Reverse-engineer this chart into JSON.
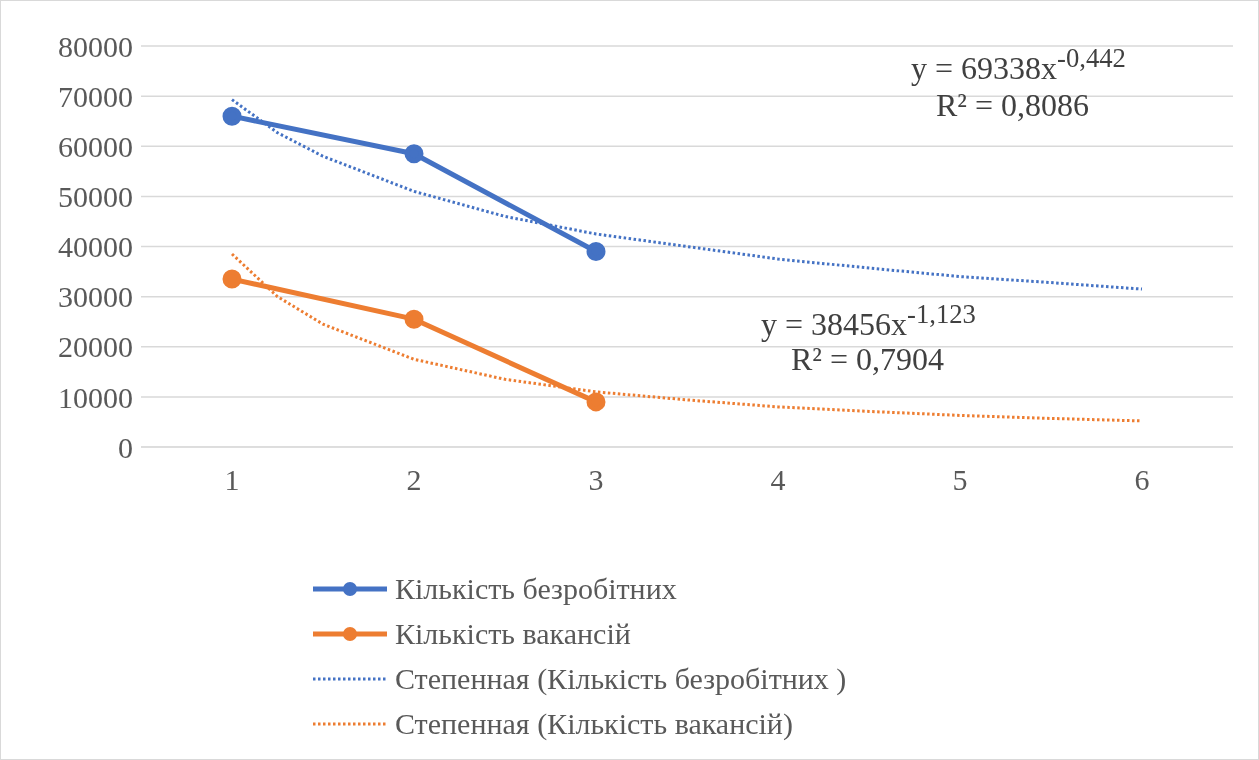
{
  "chart_data": {
    "type": "line",
    "xlim": [
      0.5,
      6.5
    ],
    "xticks": [
      1,
      2,
      3,
      4,
      5,
      6
    ],
    "ylim": [
      0,
      80000
    ],
    "yticks": [
      0,
      10000,
      20000,
      30000,
      40000,
      50000,
      60000,
      70000,
      80000
    ],
    "grid": "y",
    "legend": "bottom",
    "series": [
      {
        "name": "Кількість безробітних",
        "color": "#4472c4",
        "x": [
          1,
          2,
          3
        ],
        "values": [
          66000,
          58500,
          39000
        ],
        "marker": "circle",
        "line_style": "solid"
      },
      {
        "name": "Кількість вакансій",
        "color": "#ed7d31",
        "x": [
          1,
          2,
          3
        ],
        "values": [
          33500,
          25500,
          9000
        ],
        "marker": "circle",
        "line_style": "solid"
      },
      {
        "name": "Степенная (Кількість безробітних )",
        "color": "#4472c4",
        "x": [
          1,
          1.25,
          1.5,
          2,
          2.5,
          3,
          3.5,
          4,
          4.5,
          5,
          5.5,
          6
        ],
        "values": [
          69300,
          62700,
          58000,
          51000,
          46000,
          42500,
          40000,
          37500,
          35700,
          34000,
          32800,
          31500
        ],
        "marker": "none",
        "line_style": "dotted"
      },
      {
        "name": "Степенная (Кількість вакансій)",
        "color": "#ed7d31",
        "x": [
          1,
          1.25,
          1.5,
          2,
          2.5,
          3,
          3.5,
          4,
          4.5,
          5,
          5.5,
          6
        ],
        "values": [
          38500,
          30000,
          24500,
          17500,
          13500,
          11000,
          9400,
          8000,
          7100,
          6300,
          5700,
          5200
        ],
        "marker": "none",
        "line_style": "dotted"
      }
    ],
    "annotations": [
      "y = 69338x$^{-0,442}$",
      "R² = 0,8086",
      "y = 38456x$^{-1,123}$",
      "R² = 0,7904"
    ]
  }
}
